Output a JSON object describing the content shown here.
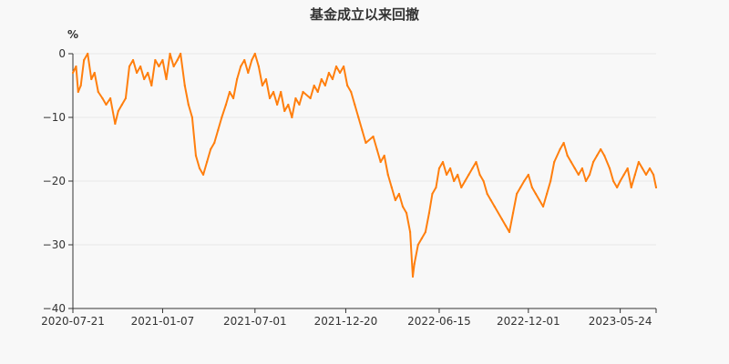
{
  "chart_data": {
    "type": "line",
    "title": "基金成立以来回撤",
    "y_unit": "%",
    "ylim": [
      -40,
      0
    ],
    "y_ticks": [
      0,
      -10,
      -20,
      -30,
      -40
    ],
    "x_tick_labels": [
      "2020-07-21",
      "2021-01-07",
      "2021-07-01",
      "2021-12-20",
      "2022-06-15",
      "2022-12-01",
      "2023-05-24"
    ],
    "x_range": [
      "2020-07-21",
      "2023-07-31"
    ],
    "grid": true,
    "legend": "none",
    "line_color": "#ff7f0e",
    "series": [
      {
        "values": [
          [
            "2020-07-21",
            -3
          ],
          [
            "2020-07-27",
            -2
          ],
          [
            "2020-07-31",
            -6
          ],
          [
            "2020-08-05",
            -5
          ],
          [
            "2020-08-11",
            -1
          ],
          [
            "2020-08-18",
            0
          ],
          [
            "2020-08-25",
            -4
          ],
          [
            "2020-08-31",
            -3
          ],
          [
            "2020-09-07",
            -6
          ],
          [
            "2020-09-15",
            -7
          ],
          [
            "2020-09-22",
            -8
          ],
          [
            "2020-09-30",
            -7
          ],
          [
            "2020-10-09",
            -11
          ],
          [
            "2020-10-15",
            -9
          ],
          [
            "2020-10-22",
            -8
          ],
          [
            "2020-10-29",
            -7
          ],
          [
            "2020-11-05",
            -2
          ],
          [
            "2020-11-12",
            -1
          ],
          [
            "2020-11-19",
            -3
          ],
          [
            "2020-11-26",
            -2
          ],
          [
            "2020-12-03",
            -4
          ],
          [
            "2020-12-10",
            -3
          ],
          [
            "2020-12-17",
            -5
          ],
          [
            "2020-12-24",
            -1
          ],
          [
            "2020-12-31",
            -2
          ],
          [
            "2021-01-07",
            -1
          ],
          [
            "2021-01-14",
            -4
          ],
          [
            "2021-01-21",
            0
          ],
          [
            "2021-01-28",
            -2
          ],
          [
            "2021-02-04",
            -1
          ],
          [
            "2021-02-10",
            0
          ],
          [
            "2021-02-18",
            -5
          ],
          [
            "2021-02-25",
            -8
          ],
          [
            "2021-03-04",
            -10
          ],
          [
            "2021-03-11",
            -16
          ],
          [
            "2021-03-18",
            -18
          ],
          [
            "2021-03-25",
            -19
          ],
          [
            "2021-04-01",
            -17
          ],
          [
            "2021-04-08",
            -15
          ],
          [
            "2021-04-15",
            -14
          ],
          [
            "2021-04-22",
            -12
          ],
          [
            "2021-04-29",
            -10
          ],
          [
            "2021-05-07",
            -8
          ],
          [
            "2021-05-14",
            -6
          ],
          [
            "2021-05-21",
            -7
          ],
          [
            "2021-05-28",
            -4
          ],
          [
            "2021-06-04",
            -2
          ],
          [
            "2021-06-11",
            -1
          ],
          [
            "2021-06-18",
            -3
          ],
          [
            "2021-06-25",
            -1
          ],
          [
            "2021-07-01",
            0
          ],
          [
            "2021-07-08",
            -2
          ],
          [
            "2021-07-15",
            -5
          ],
          [
            "2021-07-22",
            -4
          ],
          [
            "2021-07-29",
            -7
          ],
          [
            "2021-08-05",
            -6
          ],
          [
            "2021-08-12",
            -8
          ],
          [
            "2021-08-19",
            -6
          ],
          [
            "2021-08-26",
            -9
          ],
          [
            "2021-09-02",
            -8
          ],
          [
            "2021-09-09",
            -10
          ],
          [
            "2021-09-16",
            -7
          ],
          [
            "2021-09-23",
            -8
          ],
          [
            "2021-09-30",
            -6
          ],
          [
            "2021-10-14",
            -7
          ],
          [
            "2021-10-21",
            -5
          ],
          [
            "2021-10-28",
            -6
          ],
          [
            "2021-11-04",
            -4
          ],
          [
            "2021-11-11",
            -5
          ],
          [
            "2021-11-18",
            -3
          ],
          [
            "2021-11-25",
            -4
          ],
          [
            "2021-12-02",
            -2
          ],
          [
            "2021-12-09",
            -3
          ],
          [
            "2021-12-16",
            -2
          ],
          [
            "2021-12-23",
            -5
          ],
          [
            "2021-12-30",
            -6
          ],
          [
            "2022-01-06",
            -8
          ],
          [
            "2022-01-13",
            -10
          ],
          [
            "2022-01-20",
            -12
          ],
          [
            "2022-01-27",
            -14
          ],
          [
            "2022-02-10",
            -13
          ],
          [
            "2022-02-17",
            -15
          ],
          [
            "2022-02-24",
            -17
          ],
          [
            "2022-03-03",
            -16
          ],
          [
            "2022-03-10",
            -19
          ],
          [
            "2022-03-17",
            -21
          ],
          [
            "2022-03-24",
            -23
          ],
          [
            "2022-03-31",
            -22
          ],
          [
            "2022-04-07",
            -24
          ],
          [
            "2022-04-14",
            -25
          ],
          [
            "2022-04-21",
            -28
          ],
          [
            "2022-04-26",
            -35
          ],
          [
            "2022-04-29",
            -33
          ],
          [
            "2022-05-06",
            -30
          ],
          [
            "2022-05-13",
            -29
          ],
          [
            "2022-05-20",
            -28
          ],
          [
            "2022-05-27",
            -25
          ],
          [
            "2022-06-02",
            -22
          ],
          [
            "2022-06-09",
            -21
          ],
          [
            "2022-06-15",
            -18
          ],
          [
            "2022-06-22",
            -17
          ],
          [
            "2022-06-29",
            -19
          ],
          [
            "2022-07-06",
            -18
          ],
          [
            "2022-07-13",
            -20
          ],
          [
            "2022-07-20",
            -19
          ],
          [
            "2022-07-27",
            -21
          ],
          [
            "2022-08-03",
            -20
          ],
          [
            "2022-08-10",
            -19
          ],
          [
            "2022-08-17",
            -18
          ],
          [
            "2022-08-24",
            -17
          ],
          [
            "2022-08-31",
            -19
          ],
          [
            "2022-09-07",
            -20
          ],
          [
            "2022-09-14",
            -22
          ],
          [
            "2022-09-21",
            -23
          ],
          [
            "2022-09-28",
            -24
          ],
          [
            "2022-10-12",
            -26
          ],
          [
            "2022-10-19",
            -27
          ],
          [
            "2022-10-26",
            -28
          ],
          [
            "2022-11-02",
            -25
          ],
          [
            "2022-11-09",
            -22
          ],
          [
            "2022-11-16",
            -21
          ],
          [
            "2022-11-23",
            -20
          ],
          [
            "2022-12-01",
            -19
          ],
          [
            "2022-12-08",
            -21
          ],
          [
            "2022-12-15",
            -22
          ],
          [
            "2022-12-22",
            -23
          ],
          [
            "2022-12-29",
            -24
          ],
          [
            "2023-01-05",
            -22
          ],
          [
            "2023-01-12",
            -20
          ],
          [
            "2023-01-19",
            -17
          ],
          [
            "2023-01-30",
            -15
          ],
          [
            "2023-02-06",
            -14
          ],
          [
            "2023-02-13",
            -16
          ],
          [
            "2023-02-20",
            -17
          ],
          [
            "2023-02-27",
            -18
          ],
          [
            "2023-03-06",
            -19
          ],
          [
            "2023-03-13",
            -18
          ],
          [
            "2023-03-20",
            -20
          ],
          [
            "2023-03-27",
            -19
          ],
          [
            "2023-04-03",
            -17
          ],
          [
            "2023-04-10",
            -16
          ],
          [
            "2023-04-17",
            -15
          ],
          [
            "2023-04-24",
            -16
          ],
          [
            "2023-05-04",
            -18
          ],
          [
            "2023-05-11",
            -20
          ],
          [
            "2023-05-18",
            -21
          ],
          [
            "2023-05-24",
            -20
          ],
          [
            "2023-05-31",
            -19
          ],
          [
            "2023-06-07",
            -18
          ],
          [
            "2023-06-14",
            -21
          ],
          [
            "2023-06-21",
            -19
          ],
          [
            "2023-06-28",
            -17
          ],
          [
            "2023-07-05",
            -18
          ],
          [
            "2023-07-12",
            -19
          ],
          [
            "2023-07-19",
            -18
          ],
          [
            "2023-07-26",
            -19
          ],
          [
            "2023-07-31",
            -21
          ]
        ]
      }
    ]
  }
}
